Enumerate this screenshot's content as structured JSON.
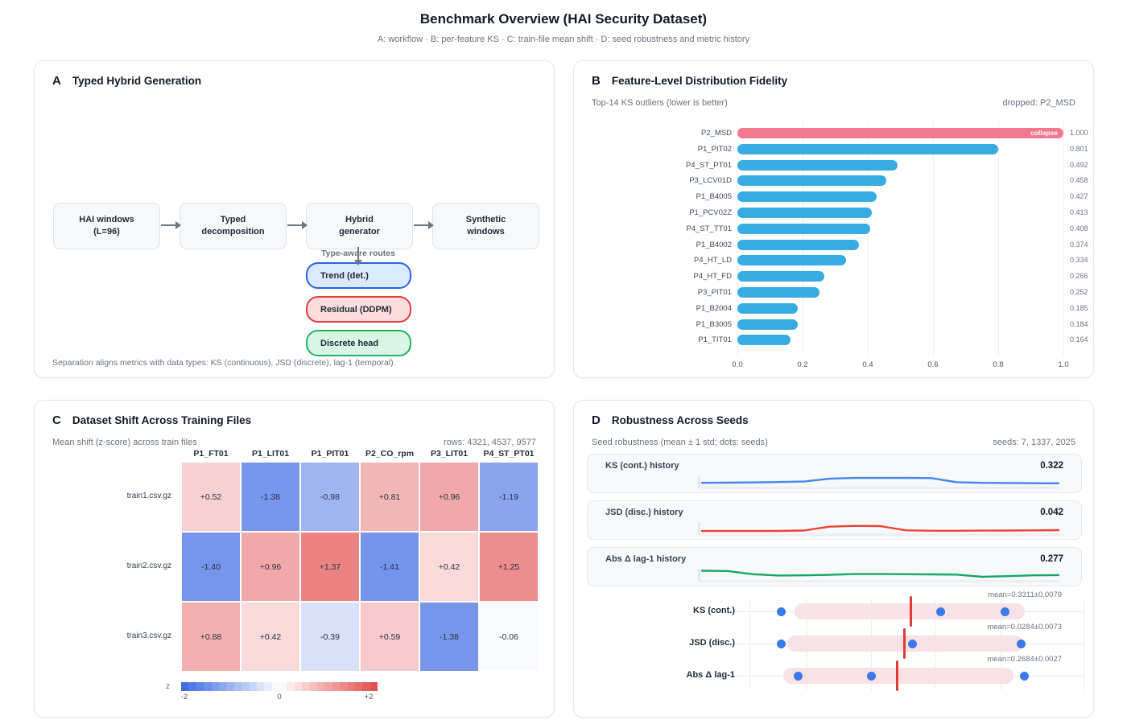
{
  "page": {
    "title": "Benchmark Overview (HAI Security Dataset)",
    "subtitle": "A: workflow · B: per-feature KS · C: train-file mean shift · D: seed robustness and metric history"
  },
  "colors": {
    "bar_blue": "#36ace2",
    "bar_pink": "#f27890",
    "heat_neg": "#3b67e3",
    "heat_pos": "#e24a4a",
    "dot_blue": "#3b79e8",
    "mean_red": "#e53935",
    "band_pink": "#f9e2e5"
  },
  "panelA": {
    "letter": "A",
    "title": "Typed Hybrid Generation",
    "flow": [
      {
        "line1": "HAI windows",
        "line2": "(L=96)"
      },
      {
        "line1": "Typed",
        "line2": "decomposition"
      },
      {
        "line1": "Hybrid",
        "line2": "generator"
      },
      {
        "line1": "Synthetic",
        "line2": "windows"
      }
    ],
    "routes_label": "Type-aware routes",
    "routes": [
      {
        "label": "Trend (det.)",
        "bg": "#dbeafe",
        "border": "#2563eb"
      },
      {
        "label": "Residual (DDPM)",
        "bg": "#fcdcdc",
        "border": "#e23d3d"
      },
      {
        "label": "Discrete head",
        "bg": "#d8f6e3",
        "border": "#22b564"
      }
    ],
    "footer": "Separation aligns metrics with data types: KS (continuous), JSD (discrete), lag-1 (temporal)."
  },
  "panelB": {
    "letter": "B",
    "title": "Feature-Level Distribution Fidelity",
    "subtitle": "Top-14 KS outliers (lower is better)",
    "note": "dropped: P2_MSD"
  },
  "panelC": {
    "letter": "C",
    "title": "Dataset Shift Across Training Files",
    "subtitle": "Mean shift (z-score) across train files",
    "note": "rows: 4321, 4537, 9577"
  },
  "panelD": {
    "letter": "D",
    "title": "Robustness Across Seeds",
    "subtitle": "Seed robustness (mean ± 1 std; dots: seeds)",
    "note": "seeds: 7, 1337, 2025"
  },
  "chart_data": [
    {
      "id": "ks_outliers",
      "type": "bar",
      "orientation": "horizontal",
      "title": "Top-14 KS outliers (lower is better)",
      "categories": [
        "P2_MSD",
        "P1_PIT02",
        "P4_ST_PT01",
        "P3_LCV01D",
        "P1_B4005",
        "P1_PCV02Z",
        "P4_ST_TT01",
        "P1_B4002",
        "P4_HT_LD",
        "P4_HT_FD",
        "P3_PIT01",
        "P1_B2004",
        "P1_B3005",
        "P1_TIT01"
      ],
      "values": [
        1.0,
        0.801,
        0.492,
        0.458,
        0.427,
        0.413,
        0.408,
        0.374,
        0.334,
        0.266,
        0.252,
        0.185,
        0.184,
        0.164
      ],
      "value_labels": [
        "1.000",
        "0.801",
        "0.492",
        "0.458",
        "0.427",
        "0.413",
        "0.408",
        "0.374",
        "0.334",
        "0.266",
        "0.252",
        "0.185",
        "0.184",
        "0.164"
      ],
      "highlight_index": 0,
      "highlight_badge": "collapse",
      "xlim": [
        0,
        1
      ],
      "xticks": [
        "0.0",
        "0.2",
        "0.4",
        "0.6",
        "0.8",
        "1.0"
      ],
      "grid": true,
      "legend": false
    },
    {
      "id": "train_shift",
      "type": "heatmap",
      "columns": [
        "P1_FT01",
        "P1_LIT01",
        "P1_PIT01",
        "P2_CO_rpm",
        "P3_LIT01",
        "P4_ST_PT01"
      ],
      "rows": [
        "train1.csv.gz",
        "train2.csv.gz",
        "train3.csv.gz"
      ],
      "values": [
        [
          0.52,
          -1.38,
          -0.98,
          0.81,
          0.96,
          -1.19
        ],
        [
          -1.4,
          0.96,
          1.37,
          -1.41,
          0.42,
          1.25
        ],
        [
          0.88,
          0.42,
          -0.39,
          0.59,
          -1.38,
          -0.06
        ]
      ],
      "zlim": [
        -2,
        2
      ],
      "colorbar_label": "z",
      "colorbar_ticks": [
        "-2",
        "0",
        "+2"
      ]
    },
    {
      "id": "metric_history",
      "type": "line",
      "series": [
        {
          "name": "KS (cont.) history",
          "final": "0.322",
          "color": "#4285f4",
          "y": [
            0.3,
            0.31,
            0.33,
            0.36,
            0.4,
            0.62,
            0.68,
            0.68,
            0.68,
            0.67,
            0.35,
            0.3,
            0.29,
            0.27,
            0.26
          ]
        },
        {
          "name": "JSD (disc.) history",
          "final": "0.042",
          "color": "#ea4335",
          "y": [
            0.18,
            0.18,
            0.18,
            0.19,
            0.22,
            0.52,
            0.58,
            0.56,
            0.24,
            0.2,
            0.2,
            0.21,
            0.22,
            0.23,
            0.25
          ]
        },
        {
          "name": "Abs Δ lag-1 history",
          "final": "0.277",
          "color": "#17a864",
          "y": [
            0.72,
            0.7,
            0.45,
            0.35,
            0.36,
            0.4,
            0.46,
            0.46,
            0.45,
            0.44,
            0.42,
            0.25,
            0.3,
            0.36,
            0.38
          ]
        }
      ]
    },
    {
      "id": "seed_robustness",
      "type": "scatter",
      "rows": [
        {
          "label": "KS (cont.)",
          "mean_label": "mean=0.3311±0.0079",
          "band": [
            0.135,
            0.824
          ],
          "mean": 0.482,
          "dots": [
            0.096,
            0.573,
            0.766
          ]
        },
        {
          "label": "JSD (disc.)",
          "mean_label": "mean=0.0284±0.0073",
          "band": [
            0.113,
            0.819
          ],
          "mean": 0.465,
          "dots": [
            0.096,
            0.487,
            0.814
          ]
        },
        {
          "label": "Abs Δ lag-1",
          "mean_label": "mean=0.2684±0.0027",
          "band": [
            0.101,
            0.79
          ],
          "mean": 0.443,
          "dots": [
            0.145,
            0.364,
            0.824
          ]
        }
      ],
      "gridlines": [
        0,
        0.173,
        0.366,
        0.559,
        0.752,
        1.0
      ]
    }
  ]
}
